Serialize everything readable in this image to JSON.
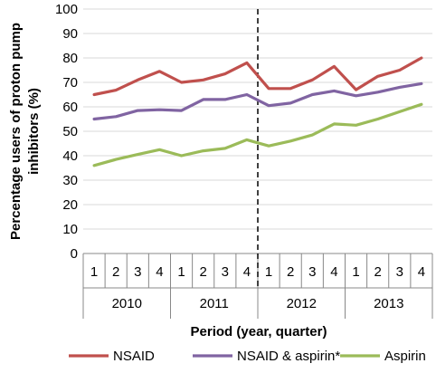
{
  "chart_data": {
    "type": "line",
    "ylabel_lines": [
      "Percentage users of proton pump",
      "inhibitors (%)"
    ],
    "xlabel": "Period (year, quarter)",
    "ylim": [
      0,
      100
    ],
    "yticks": [
      0,
      10,
      20,
      30,
      40,
      50,
      60,
      70,
      80,
      90,
      100
    ],
    "grid": true,
    "quarters": [
      "1",
      "2",
      "3",
      "4",
      "1",
      "2",
      "3",
      "4",
      "1",
      "2",
      "3",
      "4",
      "1",
      "2",
      "3",
      "4"
    ],
    "years": [
      "2010",
      "2011",
      "2012",
      "2013"
    ],
    "divider_after_index": 7,
    "series": [
      {
        "name": "NSAID",
        "color": "#c0504d",
        "values": [
          65,
          66.8,
          71,
          74.5,
          70,
          71,
          73.5,
          78,
          67.5,
          67.5,
          71,
          76.5,
          67,
          72.5,
          75,
          80
        ]
      },
      {
        "name": "NSAID & aspirin*",
        "color": "#8064a2",
        "values": [
          55,
          56,
          58.5,
          58.8,
          58.5,
          63,
          63,
          65,
          60.5,
          61.5,
          65,
          66.5,
          64.5,
          66,
          68,
          69.5
        ]
      },
      {
        "name": "Aspirin",
        "color": "#9bbb59",
        "values": [
          36,
          38.5,
          40.5,
          42.5,
          40,
          42,
          43,
          46.5,
          44,
          46,
          48.5,
          53,
          52.5,
          55,
          58,
          61
        ]
      }
    ],
    "legend_position": "bottom"
  }
}
